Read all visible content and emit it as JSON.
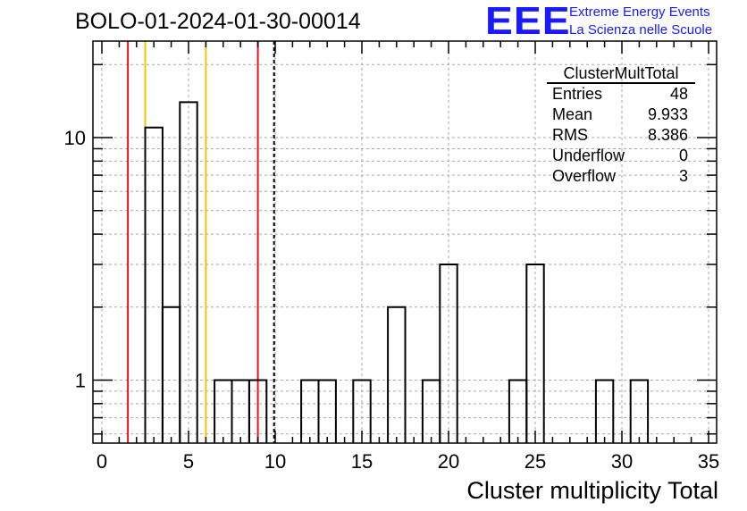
{
  "title": "BOLO-01-2024-01-30-00014",
  "logo": {
    "mark": "EEE",
    "line1": "Extreme Energy Events",
    "line2": "La Scienza nelle Scuole",
    "color": "#1a1aff"
  },
  "stats": {
    "name": "ClusterMultTotal",
    "rows": [
      {
        "label": "Entries",
        "value": "48"
      },
      {
        "label": "Mean",
        "value": "9.933"
      },
      {
        "label": "RMS",
        "value": "8.386"
      },
      {
        "label": "Underflow",
        "value": "0"
      },
      {
        "label": "Overflow",
        "value": "3"
      }
    ]
  },
  "chart_data": {
    "type": "histogram",
    "xlabel": "Cluster multiplicity Total",
    "ylabel": "",
    "xlim": [
      0,
      35
    ],
    "ylim": [
      0.55,
      25
    ],
    "yscale": "log",
    "grid": true,
    "x_ticks": [
      0,
      5,
      10,
      15,
      20,
      25,
      30,
      35
    ],
    "y_ticks": [
      1,
      10
    ],
    "bins": [
      {
        "x0": 2.5,
        "x1": 3.5,
        "count": 11
      },
      {
        "x0": 3.5,
        "x1": 4.5,
        "count": 2
      },
      {
        "x0": 4.5,
        "x1": 5.5,
        "count": 14
      },
      {
        "x0": 6.5,
        "x1": 7.5,
        "count": 1
      },
      {
        "x0": 7.5,
        "x1": 8.5,
        "count": 1
      },
      {
        "x0": 8.5,
        "x1": 9.5,
        "count": 1
      },
      {
        "x0": 11.5,
        "x1": 12.5,
        "count": 1
      },
      {
        "x0": 12.5,
        "x1": 13.5,
        "count": 1
      },
      {
        "x0": 14.5,
        "x1": 15.5,
        "count": 1
      },
      {
        "x0": 16.5,
        "x1": 17.5,
        "count": 2
      },
      {
        "x0": 18.5,
        "x1": 19.5,
        "count": 1
      },
      {
        "x0": 19.5,
        "x1": 20.5,
        "count": 3
      },
      {
        "x0": 23.5,
        "x1": 24.5,
        "count": 1
      },
      {
        "x0": 24.5,
        "x1": 25.5,
        "count": 3
      },
      {
        "x0": 28.5,
        "x1": 29.5,
        "count": 1
      },
      {
        "x0": 30.5,
        "x1": 31.5,
        "count": 1
      }
    ],
    "vlines": [
      {
        "x": 1.5,
        "color": "#e8141c",
        "style": "solid"
      },
      {
        "x": 2.5,
        "color": "#f5c400",
        "style": "solid"
      },
      {
        "x": 6.0,
        "color": "#f5c400",
        "style": "solid"
      },
      {
        "x": 9.0,
        "color": "#e8141c",
        "style": "solid"
      },
      {
        "x": 9.933,
        "color": "#000000",
        "style": "dashed"
      }
    ]
  }
}
